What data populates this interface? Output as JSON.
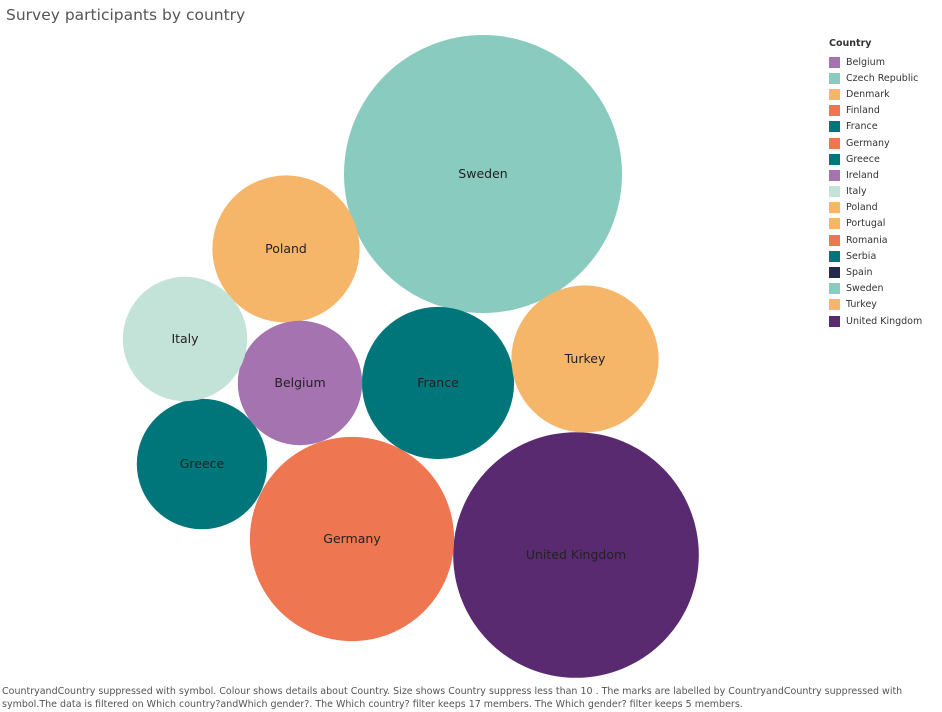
{
  "title": "Survey participants by country",
  "legend_title": "Country",
  "chart_data": {
    "type": "bubble",
    "title": "Survey participants by country",
    "legend": {
      "title": "Country",
      "placement": "top-right",
      "entries": [
        {
          "name": "Belgium",
          "color": "#a673b1"
        },
        {
          "name": "Czech Republic",
          "color": "#89cbbe"
        },
        {
          "name": "Denmark",
          "color": "#f6b66a"
        },
        {
          "name": "Finland",
          "color": "#ee7752"
        },
        {
          "name": "France",
          "color": "#00767b"
        },
        {
          "name": "Germany",
          "color": "#ee7752"
        },
        {
          "name": "Greece",
          "color": "#00767b"
        },
        {
          "name": "Ireland",
          "color": "#a673b1"
        },
        {
          "name": "Italy",
          "color": "#c3e2d8"
        },
        {
          "name": "Poland",
          "color": "#f6b66a"
        },
        {
          "name": "Portugal",
          "color": "#f6b66a"
        },
        {
          "name": "Romania",
          "color": "#ee7752"
        },
        {
          "name": "Serbia",
          "color": "#00767b"
        },
        {
          "name": "Spain",
          "color": "#242a49"
        },
        {
          "name": "Sweden",
          "color": "#89cbbe"
        },
        {
          "name": "Turkey",
          "color": "#f6b66a"
        },
        {
          "name": "United Kingdom",
          "color": "#5a2a70"
        }
      ]
    },
    "bubbles": [
      {
        "label": "Sweden",
        "value": 100,
        "color": "#89cbbe"
      },
      {
        "label": "United Kingdom",
        "value": 78,
        "color": "#5a2a70"
      },
      {
        "label": "Germany",
        "value": 54,
        "color": "#ee7752"
      },
      {
        "label": "France",
        "value": 30,
        "color": "#00767b"
      },
      {
        "label": "Poland",
        "value": 28,
        "color": "#f6b66a"
      },
      {
        "label": "Turkey",
        "value": 28,
        "color": "#f6b66a"
      },
      {
        "label": "Greece",
        "value": 22,
        "color": "#00767b"
      },
      {
        "label": "Belgium",
        "value": 20,
        "color": "#a673b1"
      },
      {
        "label": "Italy",
        "value": 20,
        "color": "#c3e2d8"
      }
    ]
  },
  "footnote": "CountryandCountry suppressed with symbol. Colour shows details about Country. Size shows Country suppress less than 10 . The marks are labelled by CountryandCountry suppressed with symbol.The data is filtered on Which country?andWhich gender?. The Which country? filter keeps 17 members. The Which gender? filter keeps 5 members."
}
